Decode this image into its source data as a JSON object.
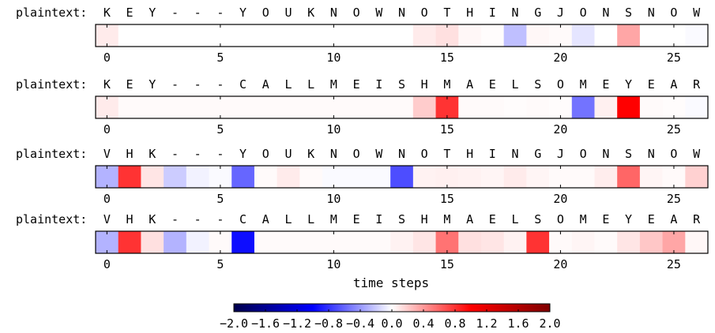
{
  "chart_data": {
    "type": "heatmap",
    "xlabel": "time steps",
    "xticks": [
      0,
      5,
      10,
      15,
      20,
      25
    ],
    "xlim": [
      -0.5,
      26.5
    ],
    "row_label_prefix": "plaintext:",
    "rows": [
      {
        "letters": [
          "K",
          "E",
          "Y",
          "-",
          "-",
          "-",
          "Y",
          "O",
          "U",
          "K",
          "N",
          "O",
          "W",
          "N",
          "O",
          "T",
          "H",
          "I",
          "N",
          "G",
          "J",
          "O",
          "N",
          "S",
          "N",
          "O",
          "W"
        ],
        "values": [
          0.08,
          0,
          0,
          0,
          0,
          0,
          0,
          0,
          0,
          0,
          0,
          0,
          0,
          0,
          0.08,
          0.12,
          0.03,
          0.01,
          -0.25,
          0.03,
          0.02,
          -0.1,
          0,
          0.35,
          0,
          0,
          -0.02
        ]
      },
      {
        "letters": [
          "K",
          "E",
          "Y",
          "-",
          "-",
          "-",
          "C",
          "A",
          "L",
          "L",
          "M",
          "E",
          "I",
          "S",
          "H",
          "M",
          "A",
          "E",
          "L",
          "S",
          "O",
          "M",
          "E",
          "Y",
          "E",
          "A",
          "R"
        ],
        "values": [
          0.08,
          0.02,
          0.02,
          0.02,
          0.02,
          0.02,
          0.02,
          0.02,
          0.02,
          0.02,
          0.02,
          0.02,
          0.02,
          0.02,
          0.2,
          0.8,
          0.02,
          0.02,
          0.01,
          0.02,
          0.01,
          -0.55,
          0.06,
          1.0,
          0.02,
          0.01,
          -0.02
        ]
      },
      {
        "letters": [
          "V",
          "H",
          "K",
          "-",
          "-",
          "-",
          "Y",
          "O",
          "U",
          "K",
          "N",
          "O",
          "W",
          "N",
          "O",
          "T",
          "H",
          "I",
          "N",
          "G",
          "J",
          "O",
          "N",
          "S",
          "N",
          "O",
          "W"
        ],
        "values": [
          -0.3,
          0.8,
          0.1,
          -0.2,
          -0.05,
          -0.02,
          -0.6,
          0.02,
          0.08,
          0.02,
          -0.02,
          -0.02,
          -0.02,
          -0.7,
          0.05,
          0.06,
          0.05,
          0.04,
          0.08,
          0.04,
          0.02,
          0.02,
          0.07,
          0.6,
          0.04,
          0.02,
          0.18
        ]
      },
      {
        "letters": [
          "V",
          "H",
          "K",
          "-",
          "-",
          "-",
          "C",
          "A",
          "L",
          "L",
          "M",
          "E",
          "I",
          "S",
          "H",
          "M",
          "A",
          "E",
          "L",
          "S",
          "O",
          "M",
          "E",
          "Y",
          "E",
          "A",
          "R"
        ],
        "values": [
          -0.3,
          0.8,
          0.12,
          -0.3,
          -0.05,
          0.02,
          -0.95,
          0.02,
          0.02,
          0.02,
          0.02,
          0.02,
          0.02,
          0.05,
          0.1,
          0.55,
          0.12,
          0.1,
          0.05,
          0.8,
          0.02,
          0.04,
          0.02,
          0.1,
          0.22,
          0.35,
          0.03
        ]
      }
    ],
    "colorbar": {
      "colormap": "seismic",
      "range": [
        -2.0,
        2.0
      ],
      "tick_labels": [
        "−2.0",
        "−1.6",
        "−1.2",
        "−0.8",
        "−0.4",
        "0.0",
        "0.4",
        "0.8",
        "1.2",
        "1.6",
        "2.0"
      ]
    }
  }
}
